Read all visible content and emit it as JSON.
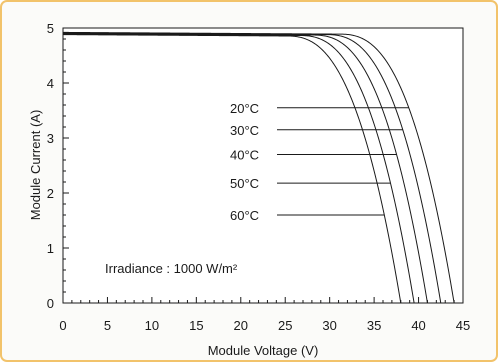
{
  "chart_data": {
    "type": "line",
    "xlabel": "Module Voltage (V)",
    "ylabel": "Module Current (A)",
    "xlim": [
      0,
      45
    ],
    "ylim": [
      0,
      5
    ],
    "xticks": [
      0,
      5,
      10,
      15,
      20,
      25,
      30,
      35,
      40,
      45
    ],
    "yticks": [
      0,
      1,
      2,
      3,
      4,
      5
    ],
    "grid": false,
    "annotation": "Irradiance : 1000 W/m²",
    "series": [
      {
        "name": "20°C",
        "isc": 4.92,
        "voc": 44.0,
        "knee": 31.0,
        "leader_y": 3.55
      },
      {
        "name": "30°C",
        "isc": 4.91,
        "voc": 42.5,
        "knee": 29.5,
        "leader_y": 3.15
      },
      {
        "name": "40°C",
        "isc": 4.9,
        "voc": 41.0,
        "knee": 28.0,
        "leader_y": 2.7
      },
      {
        "name": "50°C",
        "isc": 4.89,
        "voc": 39.5,
        "knee": 26.5,
        "leader_y": 2.18
      },
      {
        "name": "60°C",
        "isc": 4.88,
        "voc": 38.0,
        "knee": 25.0,
        "leader_y": 1.6
      }
    ]
  }
}
